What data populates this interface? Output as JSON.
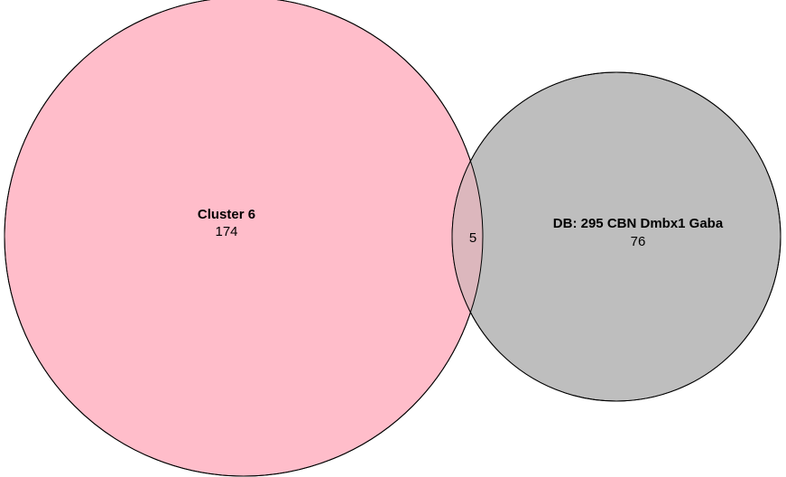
{
  "chart_data": {
    "type": "venn",
    "sets": [
      {
        "name": "Cluster 6",
        "count": "174",
        "fill": "#ffbdca"
      },
      {
        "name": "DB: 295 CBN Dmbx1 Gaba",
        "count": "76",
        "fill": "#bebebe"
      }
    ],
    "intersection": {
      "count": "5",
      "fill": "#dcb7bd"
    },
    "stroke": "#000000"
  }
}
